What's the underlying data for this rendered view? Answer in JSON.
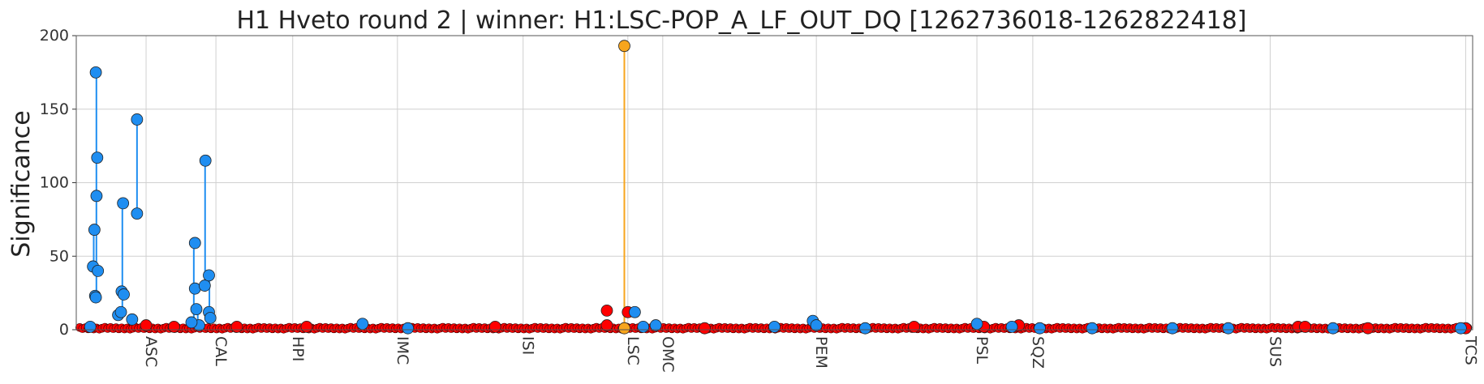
{
  "chart_data": {
    "type": "scatter",
    "title": "H1 Hveto round 2 | winner: H1:LSC-POP_A_LF_OUT_DQ [1262736018-1262822418]",
    "ylabel": "Significance",
    "xlabel": "",
    "ylim": [
      0,
      200
    ],
    "xlim": [
      0,
      2000
    ],
    "yticks": [
      0,
      50,
      100,
      150,
      200
    ],
    "grid": true,
    "categories": [
      {
        "label": "ASC",
        "x": 100
      },
      {
        "label": "CAL",
        "x": 200
      },
      {
        "label": "HPI",
        "x": 310
      },
      {
        "label": "IMC",
        "x": 460
      },
      {
        "label": "ISI",
        "x": 640
      },
      {
        "label": "LSC",
        "x": 790
      },
      {
        "label": "OMC",
        "x": 840
      },
      {
        "label": "PEM",
        "x": 1060
      },
      {
        "label": "PSL",
        "x": 1290
      },
      {
        "label": "SQZ",
        "x": 1370
      },
      {
        "label": "SUS",
        "x": 1710
      },
      {
        "label": "TCS",
        "x": 1990
      }
    ],
    "colors": {
      "winner": "#f7a51d",
      "round_above": "#1f8ef1",
      "round_below": "#ff0000",
      "grid": "#d0d0d0"
    },
    "series": [
      {
        "role": "winner",
        "points": [
          {
            "x": 785,
            "y": 193
          },
          {
            "x": 785,
            "y": 1
          }
        ]
      },
      {
        "role": "above",
        "points": [
          {
            "x": 20,
            "y": 2
          },
          {
            "x": 24,
            "y": 43
          },
          {
            "x": 26,
            "y": 68
          },
          {
            "x": 27,
            "y": 23
          },
          {
            "x": 28,
            "y": 175
          },
          {
            "x": 29,
            "y": 91
          },
          {
            "x": 30,
            "y": 117
          },
          {
            "x": 31,
            "y": 40
          },
          {
            "x": 28,
            "y": 22
          },
          {
            "x": 60,
            "y": 10
          },
          {
            "x": 64,
            "y": 12
          },
          {
            "x": 65,
            "y": 26
          },
          {
            "x": 67,
            "y": 86
          },
          {
            "x": 68,
            "y": 24
          },
          {
            "x": 80,
            "y": 7
          },
          {
            "x": 87,
            "y": 143
          },
          {
            "x": 87,
            "y": 79
          },
          {
            "x": 170,
            "y": 59
          },
          {
            "x": 170,
            "y": 28
          },
          {
            "x": 172,
            "y": 14
          },
          {
            "x": 176,
            "y": 3
          },
          {
            "x": 184,
            "y": 30
          },
          {
            "x": 185,
            "y": 115
          },
          {
            "x": 190,
            "y": 37
          },
          {
            "x": 190,
            "y": 12
          },
          {
            "x": 192,
            "y": 8
          },
          {
            "x": 165,
            "y": 5
          },
          {
            "x": 410,
            "y": 4
          },
          {
            "x": 475,
            "y": 1
          },
          {
            "x": 800,
            "y": 12
          },
          {
            "x": 812,
            "y": 2
          },
          {
            "x": 830,
            "y": 3
          },
          {
            "x": 1055,
            "y": 6
          },
          {
            "x": 1060,
            "y": 3
          },
          {
            "x": 1000,
            "y": 2
          },
          {
            "x": 1130,
            "y": 1
          },
          {
            "x": 1290,
            "y": 4
          },
          {
            "x": 1340,
            "y": 2
          },
          {
            "x": 1380,
            "y": 1
          },
          {
            "x": 1455,
            "y": 1
          },
          {
            "x": 1570,
            "y": 1
          },
          {
            "x": 1650,
            "y": 1
          },
          {
            "x": 1800,
            "y": 1
          },
          {
            "x": 1983,
            "y": 1
          }
        ]
      },
      {
        "role": "below",
        "points": [
          {
            "x": 760,
            "y": 13
          },
          {
            "x": 790,
            "y": 12
          },
          {
            "x": 760,
            "y": 3
          },
          {
            "x": 100,
            "y": 3
          },
          {
            "x": 140,
            "y": 2
          },
          {
            "x": 230,
            "y": 2
          },
          {
            "x": 330,
            "y": 2
          },
          {
            "x": 600,
            "y": 2
          },
          {
            "x": 900,
            "y": 1
          },
          {
            "x": 1200,
            "y": 2
          },
          {
            "x": 1300,
            "y": 2
          },
          {
            "x": 1350,
            "y": 3
          },
          {
            "x": 1750,
            "y": 2
          },
          {
            "x": 1760,
            "y": 2
          },
          {
            "x": 1850,
            "y": 1
          },
          {
            "x": 1990,
            "y": 1
          }
        ]
      }
    ]
  }
}
